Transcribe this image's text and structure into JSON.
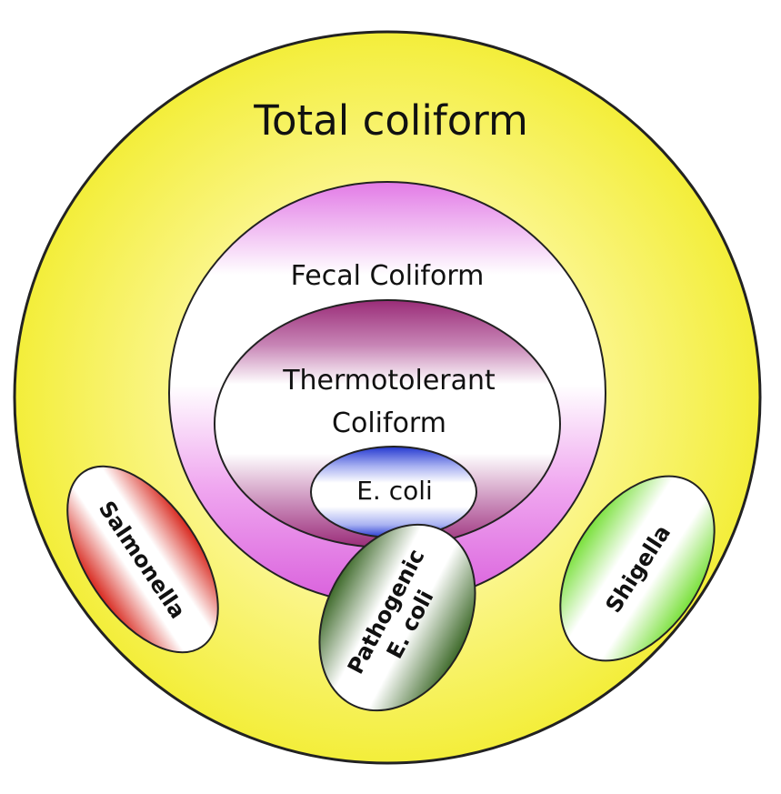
{
  "labels": {
    "total_coliform": "Total coliform",
    "fecal_coliform": "Fecal Coliform",
    "thermotolerant_line1": "Thermotolerant",
    "thermotolerant_line2": "Coliform",
    "e_coli": "E. coli",
    "salmonella": "Salmonella",
    "pathogenic_line1": "Pathogenic",
    "pathogenic_line2": "E. coli",
    "shigella": "Shigella"
  },
  "colors": {
    "total_coliform": "#f7f24a",
    "fecal_coliform": "#e070e0",
    "thermotolerant": "#a0307a",
    "e_coli": "#2a3fd6",
    "salmonella": "#d8281e",
    "pathogenic_e_coli": "#3e6a2a",
    "shigella": "#79e03a",
    "outline": "#222222"
  }
}
